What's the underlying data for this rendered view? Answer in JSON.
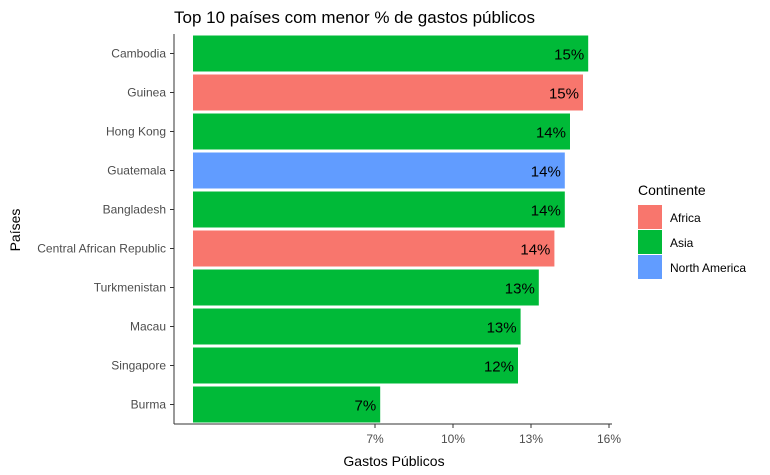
{
  "chart_data": {
    "type": "bar",
    "orientation": "horizontal",
    "title": "Top 10 países com menor % de gastos públicos",
    "xlabel": "Gastos Públicos",
    "ylabel": "Países",
    "xlim": [
      0,
      16
    ],
    "x_ticks": [
      "7%",
      "10%",
      "13%",
      "16%"
    ],
    "x_tick_values": [
      7,
      10,
      13,
      16
    ],
    "grid": false,
    "legend_position": "right",
    "legend_title": "Continente",
    "legend": [
      {
        "name": "Africa",
        "color": "#F8766D"
      },
      {
        "name": "Asia",
        "color": "#00BA38"
      },
      {
        "name": "North America",
        "color": "#619CFF"
      }
    ],
    "bars": [
      {
        "country": "Cambodia",
        "continent": "Asia",
        "value": 15.2,
        "label": "15%"
      },
      {
        "country": "Guinea",
        "continent": "Africa",
        "value": 15.0,
        "label": "15%"
      },
      {
        "country": "Hong Kong",
        "continent": "Asia",
        "value": 14.5,
        "label": "14%"
      },
      {
        "country": "Guatemala",
        "continent": "North America",
        "value": 14.3,
        "label": "14%"
      },
      {
        "country": "Bangladesh",
        "continent": "Asia",
        "value": 14.3,
        "label": "14%"
      },
      {
        "country": "Central African Republic",
        "continent": "Africa",
        "value": 13.9,
        "label": "14%"
      },
      {
        "country": "Turkmenistan",
        "continent": "Asia",
        "value": 13.3,
        "label": "13%"
      },
      {
        "country": "Macau",
        "continent": "Asia",
        "value": 12.6,
        "label": "13%"
      },
      {
        "country": "Singapore",
        "continent": "Asia",
        "value": 12.5,
        "label": "12%"
      },
      {
        "country": "Burma",
        "continent": "Asia",
        "value": 7.2,
        "label": "7%"
      }
    ]
  }
}
